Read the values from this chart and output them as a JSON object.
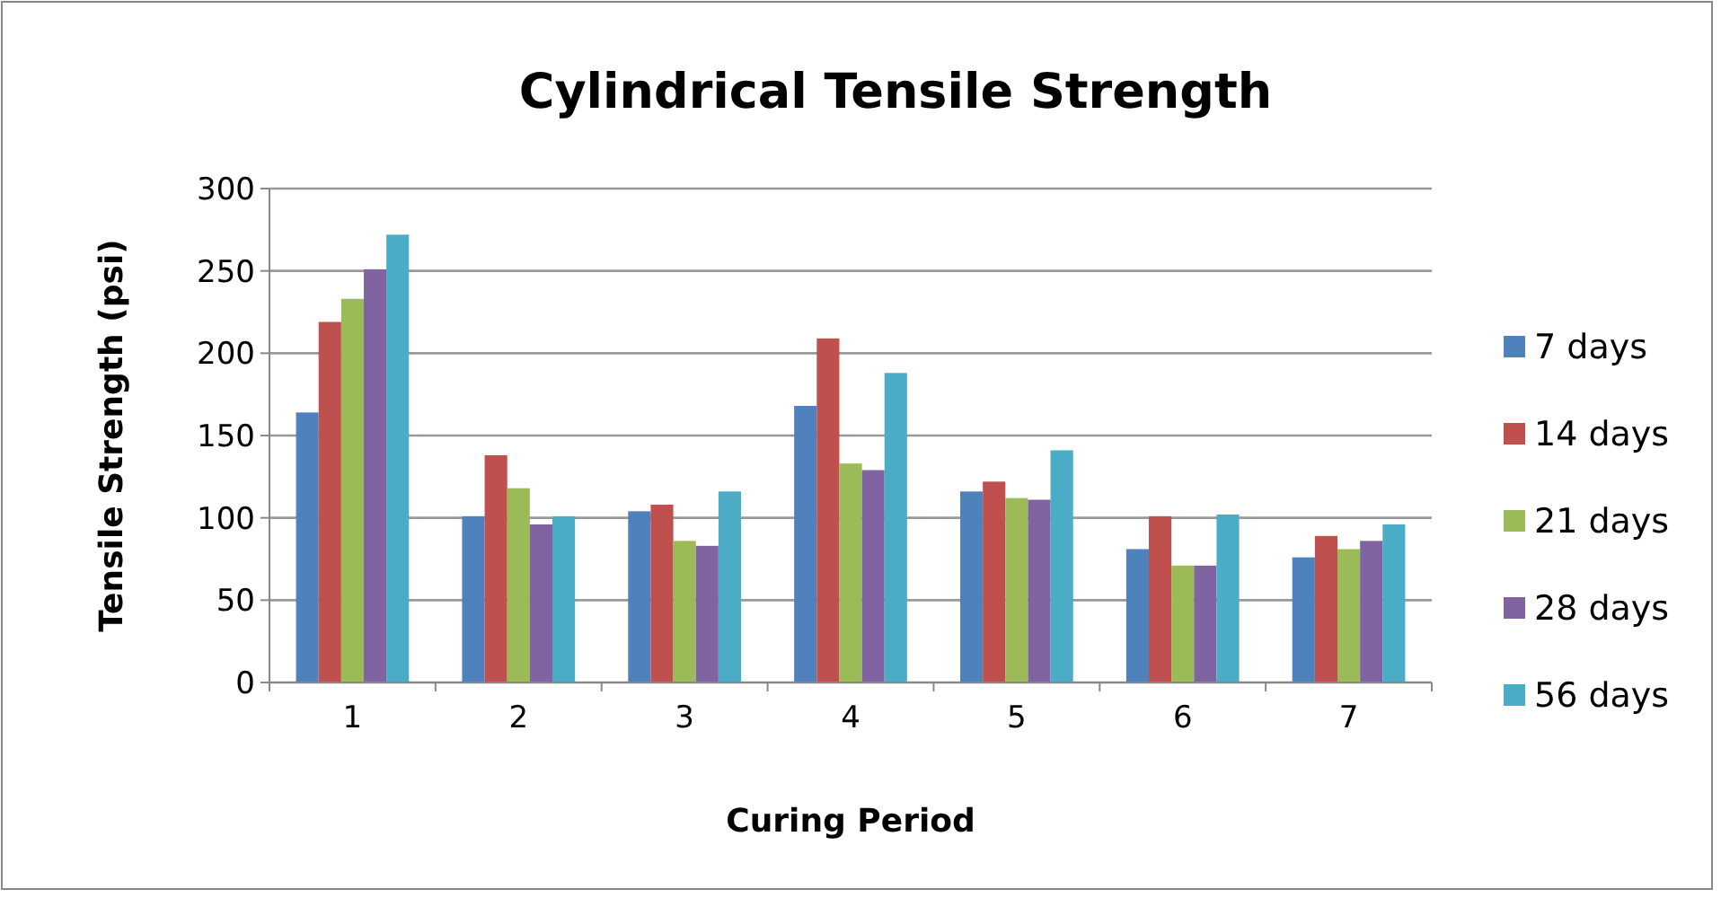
{
  "chart_data": {
    "type": "bar",
    "title": "Cylindrical Tensile Strength",
    "xlabel": "Curing Period",
    "ylabel": "Tensile Strength (psi)",
    "categories": [
      "1",
      "2",
      "3",
      "4",
      "5",
      "6",
      "7"
    ],
    "series": [
      {
        "name": "7 days",
        "color": "#4f81bd",
        "values": [
          164,
          101,
          104,
          168,
          116,
          81,
          76
        ]
      },
      {
        "name": "14 days",
        "color": "#c0504d",
        "values": [
          219,
          138,
          108,
          209,
          122,
          101,
          89
        ]
      },
      {
        "name": "21 days",
        "color": "#9bbb59",
        "values": [
          233,
          118,
          86,
          133,
          112,
          71,
          81
        ]
      },
      {
        "name": "28 days",
        "color": "#8064a2",
        "values": [
          251,
          96,
          83,
          129,
          111,
          71,
          86
        ]
      },
      {
        "name": "56 days",
        "color": "#4bacc6",
        "values": [
          272,
          101,
          116,
          188,
          141,
          102,
          96
        ]
      }
    ],
    "ylim": [
      0,
      300
    ],
    "yticks": [
      0,
      50,
      100,
      150,
      200,
      250,
      300
    ],
    "grid": "y",
    "legend": "right"
  }
}
